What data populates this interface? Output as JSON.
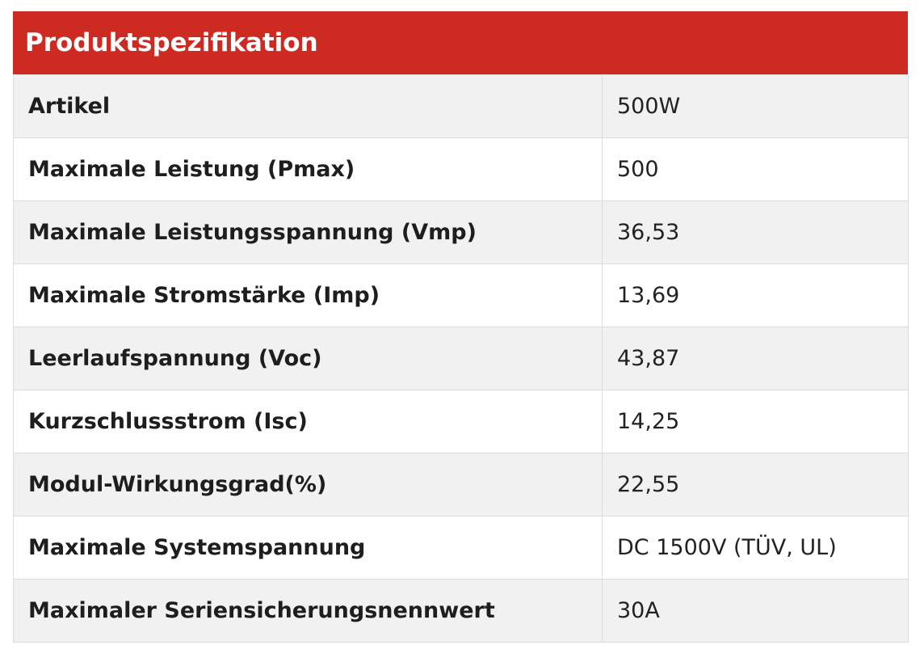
{
  "header": {
    "title": "Produktspezifikation"
  },
  "colors": {
    "header_bg": "#cd2a22",
    "row_alt_bg": "#f1f1f1",
    "border": "#dcdcdc"
  },
  "rows": [
    {
      "label": "Artikel",
      "value": "500W"
    },
    {
      "label": "Maximale Leistung (Pmax)",
      "value": "500"
    },
    {
      "label": "Maximale Leistungsspannung (Vmp)",
      "value": "36,53"
    },
    {
      "label": "Maximale Stromstärke (Imp)",
      "value": "13,69"
    },
    {
      "label": "Leerlaufspannung (Voc)",
      "value": "43,87"
    },
    {
      "label": "Kurzschlussstrom (Isc)",
      "value": "14,25"
    },
    {
      "label": "Modul-Wirkungsgrad(%)",
      "value": "22,55"
    },
    {
      "label": "Maximale Systemspannung",
      "value": "DC 1500V (TÜV, UL)"
    },
    {
      "label": "Maximaler Seriensicherungsnennwert",
      "value": "30A"
    }
  ]
}
